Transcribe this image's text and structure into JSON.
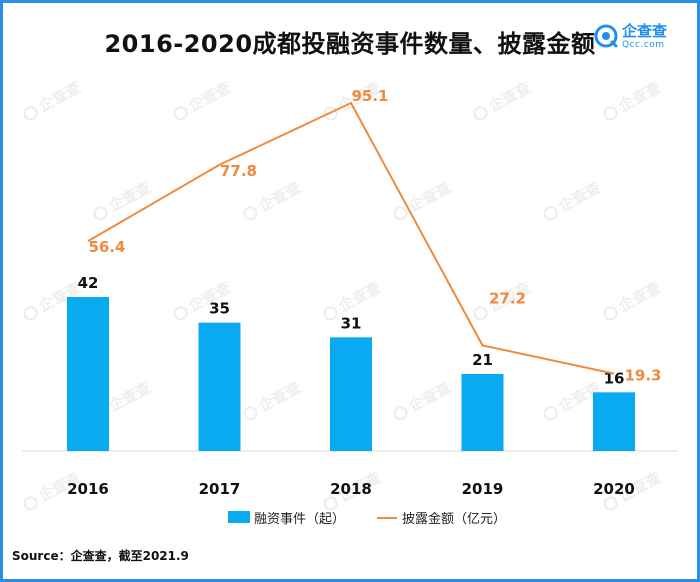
{
  "title": "2016-2020成都投融资事件数量、披露金额",
  "logo": {
    "name": "企查查",
    "domain": "Qcc.com"
  },
  "watermark": "企查查",
  "source": "Source：企查查，截至2021.9",
  "colors": {
    "bar": "#0aaaf0",
    "line": "#f08a3c",
    "border": "#2b8fe6",
    "brand": "#1f8ff0"
  },
  "chart_data": {
    "type": "bar+line",
    "categories": [
      "2016",
      "2017",
      "2018",
      "2019",
      "2020"
    ],
    "series": [
      {
        "name": "融资事件（起）",
        "type": "bar",
        "axis": "left",
        "values": [
          42,
          35,
          31,
          21,
          16
        ]
      },
      {
        "name": "披露金额（亿元）",
        "type": "line",
        "axis": "right",
        "values": [
          56.4,
          77.8,
          95.1,
          27.2,
          19.3
        ]
      }
    ],
    "title": "2016-2020成都投融资事件数量、披露金额",
    "legend_position": "bottom"
  }
}
